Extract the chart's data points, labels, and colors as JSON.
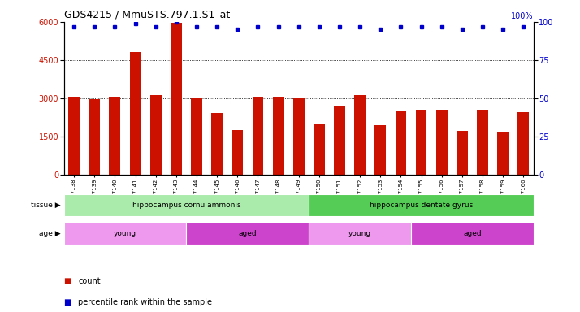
{
  "title": "GDS4215 / MmuSTS.797.1.S1_at",
  "samples": [
    "GSM297138",
    "GSM297139",
    "GSM297140",
    "GSM297141",
    "GSM297142",
    "GSM297143",
    "GSM297144",
    "GSM297145",
    "GSM297146",
    "GSM297147",
    "GSM297148",
    "GSM297149",
    "GSM297150",
    "GSM297151",
    "GSM297152",
    "GSM297153",
    "GSM297154",
    "GSM297155",
    "GSM297156",
    "GSM297157",
    "GSM297158",
    "GSM297159",
    "GSM297160"
  ],
  "counts": [
    3050,
    2970,
    3060,
    4820,
    3120,
    5950,
    2990,
    2440,
    1750,
    3070,
    3060,
    3010,
    1990,
    2700,
    3120,
    1950,
    2500,
    2550,
    2550,
    1730,
    2540,
    1700,
    2450
  ],
  "percentile_ranks": [
    97,
    97,
    97,
    99,
    97,
    100,
    97,
    97,
    95,
    97,
    97,
    97,
    97,
    97,
    97,
    95,
    97,
    97,
    97,
    95,
    97,
    95,
    97
  ],
  "bar_color": "#cc1100",
  "dot_color": "#0000cc",
  "ylim_left": [
    0,
    6000
  ],
  "ylim_right": [
    0,
    100
  ],
  "yticks_left": [
    0,
    1500,
    3000,
    4500,
    6000
  ],
  "yticks_right": [
    0,
    25,
    50,
    75,
    100
  ],
  "tissue_groups": [
    {
      "label": "hippocampus cornu ammonis",
      "start": 0,
      "end": 12,
      "color": "#aaeaaa"
    },
    {
      "label": "hippocampus dentate gyrus",
      "start": 12,
      "end": 23,
      "color": "#55cc55"
    }
  ],
  "age_groups": [
    {
      "label": "young",
      "start": 0,
      "end": 6,
      "color": "#ee99ee"
    },
    {
      "label": "aged",
      "start": 6,
      "end": 12,
      "color": "#cc44cc"
    },
    {
      "label": "young",
      "start": 12,
      "end": 17,
      "color": "#ee99ee"
    },
    {
      "label": "aged",
      "start": 17,
      "end": 23,
      "color": "#cc44cc"
    }
  ],
  "legend_count_color": "#cc1100",
  "legend_dot_color": "#0000cc",
  "background_color": "#ffffff"
}
